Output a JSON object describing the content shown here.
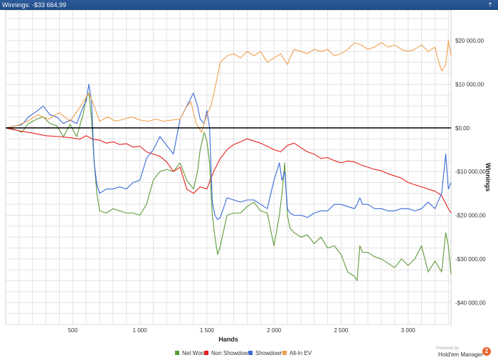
{
  "window": {
    "title": "Winnings: -$33 664,99"
  },
  "chart_data": {
    "type": "line",
    "xlabel": "Hands",
    "ylabel": "Winnings",
    "xlim": [
      0,
      3320
    ],
    "ylim": [
      -45000,
      27000
    ],
    "xticks": [
      500,
      1000,
      1500,
      2000,
      2500,
      3000
    ],
    "xtick_labels": [
      "500",
      "1 000",
      "1 500",
      "2 000",
      "2 500",
      "3 000"
    ],
    "yticks": [
      20000,
      10000,
      0,
      -10000,
      -20000,
      -30000,
      -40000
    ],
    "ytick_labels": [
      "$20 000,00",
      "$10 000,00",
      "$0,00",
      "-$10 000,00",
      "-$20 000,00",
      "-$30 000,00",
      "-$40 000,00"
    ],
    "grid": true,
    "zero_line": true,
    "legend_position": "bottom",
    "series": [
      {
        "name": "Net Won",
        "color": "#5e9a3a",
        "x": [
          0,
          60,
          120,
          170,
          230,
          280,
          330,
          380,
          430,
          480,
          530,
          580,
          600,
          620,
          640,
          660,
          680,
          700,
          750,
          800,
          850,
          900,
          950,
          1000,
          1050,
          1100,
          1150,
          1200,
          1250,
          1300,
          1350,
          1400,
          1430,
          1450,
          1480,
          1500,
          1520,
          1540,
          1560,
          1580,
          1600,
          1650,
          1700,
          1750,
          1800,
          1850,
          1900,
          1950,
          2000,
          2040,
          2060,
          2080,
          2100,
          2120,
          2150,
          2200,
          2250,
          2300,
          2350,
          2400,
          2450,
          2500,
          2550,
          2600,
          2620,
          2640,
          2660,
          2700,
          2750,
          2800,
          2850,
          2900,
          2950,
          3000,
          3050,
          3100,
          3150,
          3200,
          3250,
          3280,
          3300,
          3320
        ],
        "values": [
          0,
          -300,
          -1000,
          1000,
          2000,
          2500,
          1000,
          500,
          -2000,
          800,
          -2000,
          3500,
          7000,
          8000,
          2000,
          -8000,
          -15000,
          -19000,
          -19500,
          -18500,
          -19000,
          -19500,
          -19500,
          -20000,
          -17500,
          -12000,
          -10000,
          -9500,
          -10000,
          -8000,
          -12000,
          -14000,
          -10000,
          -5000,
          -1000,
          -3000,
          -8000,
          -20000,
          -25000,
          -29000,
          -27000,
          -20000,
          -19500,
          -19500,
          -18000,
          -17000,
          -19000,
          -19500,
          -27000,
          -20000,
          -15000,
          -8000,
          -20000,
          -23000,
          -24000,
          -25000,
          -24500,
          -26500,
          -25000,
          -27500,
          -27000,
          -29000,
          -33000,
          -34000,
          -35000,
          -27000,
          -28500,
          -28500,
          -29500,
          -30000,
          -31000,
          -32000,
          -30000,
          -31500,
          -30000,
          -27000,
          -33000,
          -30500,
          -33000,
          -24000,
          -27000,
          -33500
        ]
      },
      {
        "name": "Non Showdown",
        "color": "#e82020",
        "x": [
          0,
          100,
          200,
          300,
          400,
          500,
          550,
          600,
          650,
          700,
          750,
          800,
          850,
          900,
          950,
          1000,
          1050,
          1100,
          1150,
          1200,
          1250,
          1300,
          1350,
          1400,
          1450,
          1500,
          1550,
          1600,
          1650,
          1700,
          1750,
          1800,
          1850,
          1900,
          1950,
          2000,
          2050,
          2100,
          2150,
          2200,
          2250,
          2300,
          2350,
          2400,
          2450,
          2500,
          2550,
          2600,
          2650,
          2700,
          2750,
          2800,
          2850,
          2900,
          2950,
          3000,
          3050,
          3100,
          3150,
          3200,
          3250,
          3300,
          3320
        ],
        "values": [
          0,
          -700,
          -1200,
          -1800,
          -2000,
          -2300,
          -2600,
          -1800,
          -2600,
          -2800,
          -3500,
          -3200,
          -3800,
          -3600,
          -4400,
          -4200,
          -5500,
          -6000,
          -6500,
          -7800,
          -10000,
          -9000,
          -14000,
          -15000,
          -13500,
          -14000,
          -10000,
          -7000,
          -5000,
          -3800,
          -3200,
          -2500,
          -3000,
          -3500,
          -4200,
          -5000,
          -5500,
          -4000,
          -3500,
          -4500,
          -5500,
          -6000,
          -7000,
          -6800,
          -7500,
          -8000,
          -7600,
          -7800,
          -8500,
          -9000,
          -9500,
          -9800,
          -10500,
          -11000,
          -11500,
          -12500,
          -13000,
          -13500,
          -14000,
          -14500,
          -15500,
          -18500,
          -19500
        ]
      },
      {
        "name": "Showdown",
        "color": "#3a6ad8",
        "x": [
          0,
          60,
          120,
          170,
          230,
          280,
          330,
          380,
          430,
          480,
          530,
          580,
          600,
          620,
          640,
          660,
          680,
          700,
          750,
          800,
          850,
          900,
          950,
          1000,
          1050,
          1100,
          1150,
          1200,
          1250,
          1300,
          1350,
          1400,
          1430,
          1450,
          1480,
          1500,
          1520,
          1540,
          1560,
          1580,
          1600,
          1650,
          1700,
          1750,
          1800,
          1850,
          1900,
          1950,
          2000,
          2040,
          2060,
          2080,
          2100,
          2120,
          2150,
          2200,
          2250,
          2300,
          2350,
          2400,
          2450,
          2500,
          2550,
          2600,
          2620,
          2640,
          2660,
          2700,
          2750,
          2800,
          2850,
          2900,
          2950,
          3000,
          3050,
          3100,
          3150,
          3200,
          3250,
          3280,
          3300,
          3320
        ],
        "values": [
          0,
          400,
          700,
          2500,
          3800,
          5000,
          3000,
          2500,
          1000,
          1800,
          1000,
          5000,
          6000,
          10000,
          6000,
          -8000,
          -13000,
          -15000,
          -14000,
          -14000,
          -13500,
          -14000,
          -12500,
          -12000,
          -7000,
          -5000,
          -2000,
          -4000,
          -6000,
          2000,
          5000,
          8000,
          5000,
          2000,
          1000,
          4000,
          0,
          -17000,
          -20000,
          -21000,
          -20500,
          -16000,
          -16500,
          -17000,
          -16500,
          -16500,
          -17500,
          -18500,
          -12000,
          -8000,
          -12000,
          -10000,
          -18500,
          -19500,
          -20000,
          -20000,
          -20500,
          -19500,
          -19000,
          -19000,
          -17500,
          -17500,
          -18000,
          -18500,
          -17500,
          -16000,
          -17500,
          -17500,
          -18500,
          -18500,
          -19000,
          -19000,
          -18500,
          -18500,
          -19000,
          -18500,
          -17000,
          -18500,
          -15000,
          -6000,
          -14000,
          -12500
        ]
      },
      {
        "name": "All-In EV",
        "color": "#f0a050",
        "x": [
          0,
          80,
          160,
          240,
          320,
          400,
          480,
          560,
          620,
          660,
          700,
          760,
          820,
          880,
          940,
          1000,
          1060,
          1120,
          1180,
          1240,
          1300,
          1340,
          1380,
          1420,
          1460,
          1500,
          1530,
          1560,
          1580,
          1600,
          1650,
          1700,
          1750,
          1800,
          1850,
          1900,
          1950,
          2000,
          2050,
          2100,
          2120,
          2150,
          2200,
          2250,
          2300,
          2350,
          2400,
          2450,
          2500,
          2550,
          2600,
          2650,
          2700,
          2750,
          2800,
          2850,
          2900,
          2950,
          3000,
          3050,
          3100,
          3150,
          3200,
          3220,
          3250,
          3280,
          3300,
          3320
        ],
        "values": [
          0,
          500,
          1500,
          3000,
          2000,
          3500,
          1500,
          5000,
          8000,
          5000,
          1500,
          2500,
          1500,
          2000,
          2500,
          1800,
          1500,
          2000,
          1500,
          1800,
          2000,
          4500,
          6000,
          1000,
          -1000,
          3000,
          5000,
          9000,
          12000,
          15000,
          16500,
          17000,
          16000,
          17500,
          16500,
          17500,
          15000,
          16000,
          17000,
          14500,
          16000,
          18000,
          17500,
          17000,
          18000,
          17500,
          18000,
          16500,
          17000,
          18000,
          19500,
          19000,
          18000,
          18500,
          19500,
          18500,
          19000,
          18000,
          17500,
          18000,
          19000,
          17500,
          18500,
          16000,
          13000,
          14500,
          20000,
          16500
        ]
      }
    ]
  },
  "footer": {
    "powered_by": "Powered by",
    "brand": "Hold'em Manager",
    "brand_icon": "2"
  }
}
